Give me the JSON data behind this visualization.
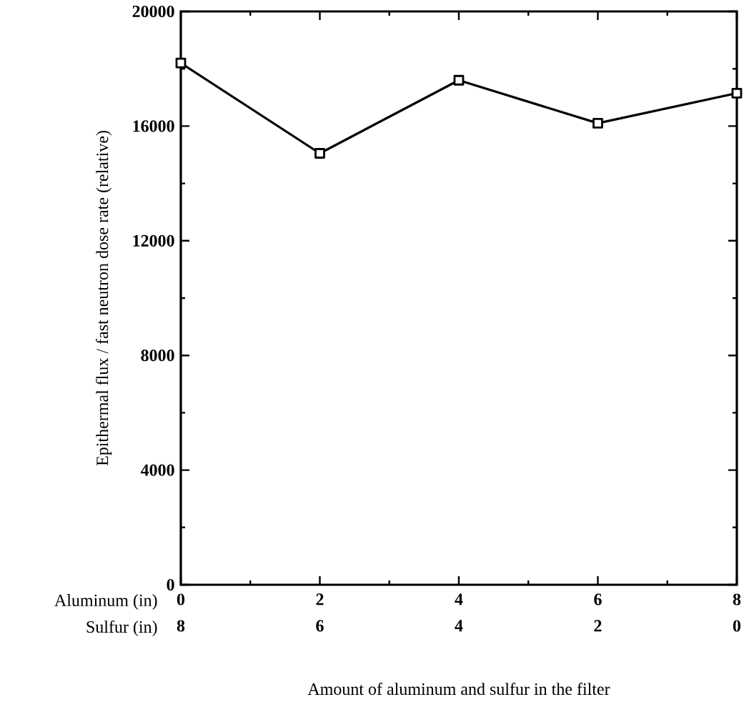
{
  "chart_data": {
    "type": "line",
    "xlabel": "Amount of aluminum and sulfur in the filter",
    "ylabel": "Epithermal flux / fast neutron dose rate  (relative)",
    "x": [
      0,
      2,
      4,
      6,
      8
    ],
    "series": [
      {
        "color": "#000000",
        "values": [
          18200,
          15050,
          17600,
          16100,
          17150
        ]
      }
    ],
    "xlim": [
      0,
      8
    ],
    "xticks": [
      0,
      2,
      4,
      6,
      8
    ],
    "x2lim": [
      8,
      0
    ],
    "x2ticks": [
      8,
      6,
      4,
      2,
      0
    ],
    "ylim": [
      0,
      20000
    ],
    "yticks": [
      0,
      4000,
      8000,
      12000,
      16000,
      20000
    ],
    "annotations": [
      "Aluminum (in)",
      "Sulfur (in)"
    ],
    "marker": "square",
    "line_style": "solid",
    "grid": false
  }
}
